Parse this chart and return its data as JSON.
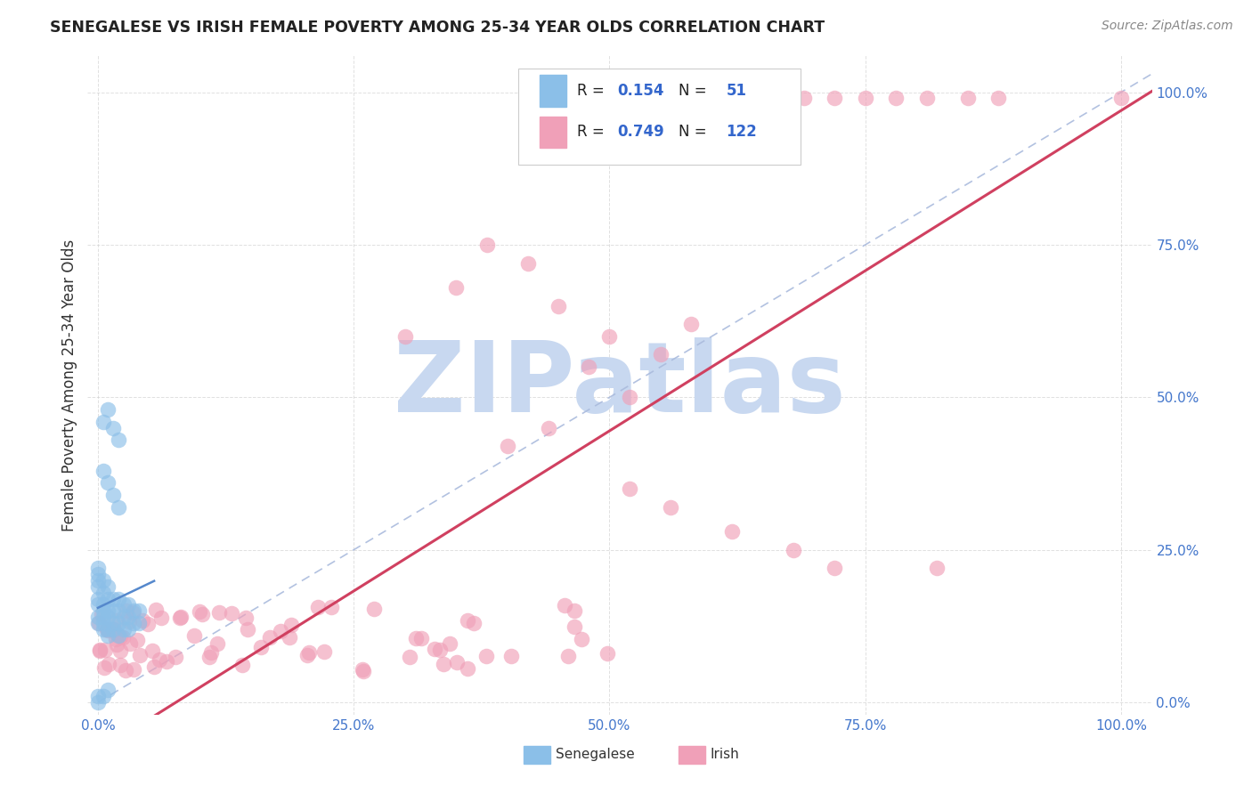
{
  "title": "SENEGALESE VS IRISH FEMALE POVERTY AMONG 25-34 YEAR OLDS CORRELATION CHART",
  "source": "Source: ZipAtlas.com",
  "ylabel": "Female Poverty Among 25-34 Year Olds",
  "xlim": [
    0,
    1.0
  ],
  "ylim": [
    0,
    1.0
  ],
  "x_ticks": [
    0,
    0.25,
    0.5,
    0.75,
    1.0
  ],
  "y_ticks": [
    0,
    0.25,
    0.5,
    0.75,
    1.0
  ],
  "x_tick_labels": [
    "0.0%",
    "25.0%",
    "50.0%",
    "75.0%",
    "100.0%"
  ],
  "y_tick_labels_right": [
    "0.0%",
    "25.0%",
    "50.0%",
    "75.0%",
    "100.0%"
  ],
  "senegalese_color": "#8bbfe8",
  "irish_color": "#f0a0b8",
  "senegalese_R": 0.154,
  "senegalese_N": 51,
  "irish_R": 0.749,
  "irish_N": 122,
  "regression_line_blue_color": "#5588cc",
  "regression_line_pink_color": "#d04060",
  "diag_line_color": "#aabbdd",
  "grid_color": "#cccccc",
  "watermark": "ZIPatlas",
  "watermark_color": "#c8d8f0",
  "background_color": "#ffffff",
  "tick_color": "#4477cc",
  "title_color": "#222222",
  "source_color": "#888888",
  "legend_text_color": "#222222",
  "legend_value_color": "#3366cc"
}
